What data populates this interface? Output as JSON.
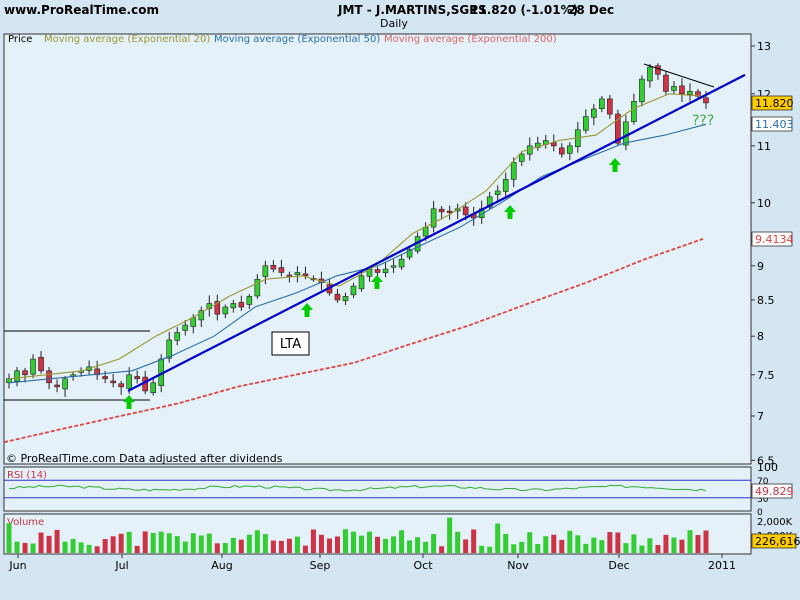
{
  "header": {
    "site": "www.ProRealTime.com",
    "symbol": "JMT - J.MARTINS,SGPS",
    "quote": "11.820 (-1.01%)",
    "date": "28 Dec",
    "period": "Daily"
  },
  "colors": {
    "background": "#d4e6f2",
    "panel": "#e4f1f9",
    "up_candle": "#33cc33",
    "down_candle": "#cc3344",
    "ema20": "#999933",
    "ema50": "#2a6fa8",
    "ema200": "#dd4444",
    "trendline": "#0000cc",
    "arrow": "#00cc00",
    "rsi": "#33aa33"
  },
  "footer_note": "© ProRealTime.com  Data adjusted after dividends",
  "annotations": {
    "lta_label": "LTA",
    "question": "???"
  },
  "price_boxes": {
    "last": "11.820",
    "ema50": "11.403",
    "ema200": "9.4134"
  },
  "rsi_box": "49.829",
  "volume_box": "226,616",
  "chart_data": [
    {
      "type": "candlestick",
      "title": "Price",
      "x_tick_labels": [
        "Jun",
        "Jul",
        "Aug",
        "Sep",
        "Oct",
        "Nov",
        "Dec",
        "2011"
      ],
      "y_ticks": [
        6.5,
        7,
        7.5,
        8,
        8.5,
        9,
        10,
        11,
        12,
        13
      ],
      "y_tick_labels": [
        "6.5",
        "7",
        "7.5",
        "8",
        "8.5",
        "9",
        "10",
        "11",
        "12",
        "13"
      ],
      "ylim": [
        6.4,
        13.2
      ],
      "scale": "log",
      "legend": [
        "Price",
        "Moving average (Exponential 20)",
        "Moving average (Exponential 50)",
        "Moving average (Exponential 200)"
      ],
      "legend_position": "top-left",
      "close_approx": [
        7.45,
        7.55,
        7.5,
        7.7,
        7.55,
        7.4,
        7.35,
        7.45,
        7.5,
        7.55,
        7.6,
        7.5,
        7.45,
        7.4,
        7.35,
        7.5,
        7.45,
        7.3,
        7.4,
        7.7,
        7.95,
        8.05,
        8.15,
        8.25,
        8.35,
        8.45,
        8.3,
        8.4,
        8.45,
        8.4,
        8.55,
        8.8,
        9.0,
        8.95,
        8.9,
        8.85,
        8.9,
        8.85,
        8.8,
        8.75,
        8.6,
        8.5,
        8.55,
        8.7,
        8.85,
        8.95,
        8.9,
        8.95,
        9.0,
        9.1,
        9.25,
        9.45,
        9.6,
        9.9,
        9.85,
        9.85,
        9.9,
        9.8,
        9.75,
        9.9,
        10.1,
        10.2,
        10.4,
        10.7,
        10.85,
        11.0,
        11.05,
        11.1,
        11.0,
        10.85,
        11.0,
        11.3,
        11.55,
        11.7,
        11.9,
        11.6,
        11.05,
        11.45,
        11.85,
        12.3,
        12.55,
        12.4,
        12.05,
        12.15,
        12.0,
        12.05,
        11.95,
        11.82
      ],
      "ema20_approx": [
        7.45,
        7.5,
        7.55,
        7.7,
        8.0,
        8.25,
        8.55,
        8.8,
        8.85,
        8.7,
        9.0,
        9.5,
        9.8,
        10.2,
        10.9,
        11.1,
        11.2,
        11.7,
        12.0,
        11.95
      ],
      "ema50_approx": [
        7.4,
        7.45,
        7.5,
        7.55,
        7.75,
        8.0,
        8.4,
        8.6,
        8.85,
        9.0,
        9.3,
        9.6,
        10.0,
        10.45,
        10.75,
        11.05,
        11.2,
        11.403
      ],
      "ema200_approx": [
        6.7,
        6.85,
        7.0,
        7.15,
        7.35,
        7.5,
        7.65,
        7.9,
        8.15,
        8.45,
        8.75,
        9.1,
        9.4134
      ],
      "annotations": [
        "LTA",
        "???"
      ],
      "trendline": {
        "from": 7.3,
        "to": 12.1
      }
    },
    {
      "type": "line",
      "title": "RSI (14)",
      "y_tick_labels": [
        "100",
        "70",
        "30",
        "0"
      ],
      "ylim": [
        0,
        100
      ],
      "last": 49.829
    },
    {
      "type": "bar",
      "title": "Volume",
      "y_tick_labels": [
        "2,000K",
        "1,000K"
      ],
      "last": 226616
    }
  ]
}
